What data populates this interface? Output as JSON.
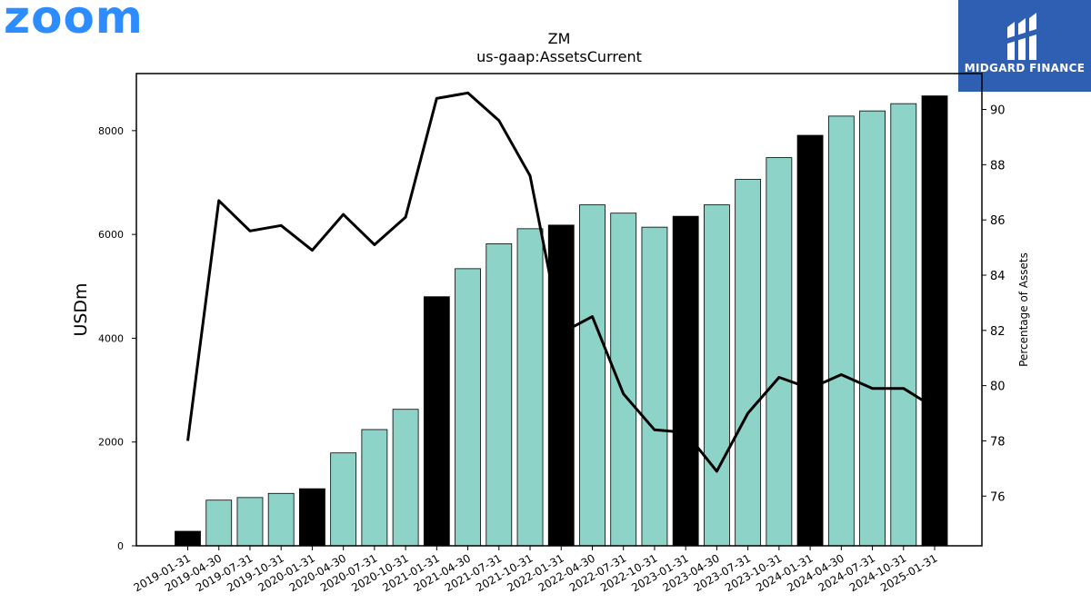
{
  "branding": {
    "left_logo_text": "zoom",
    "left_logo_color": "#2d8cff",
    "right_logo_text": "MIDGARD FINANCE",
    "right_logo_bg": "#2f5fb3"
  },
  "chart_data": {
    "type": "bar",
    "title": "ZM",
    "subtitle": "us-gaap:AssetsCurrent",
    "ylabel": "USDm",
    "y2label": "Percentage of Assets",
    "ylim": [
      0,
      9100
    ],
    "y2lim": [
      74.2,
      91.3
    ],
    "yticks": [
      0,
      2000,
      4000,
      6000,
      8000
    ],
    "y2ticks": [
      76,
      78,
      80,
      82,
      84,
      86,
      88,
      90
    ],
    "categories": [
      "2019-01-31",
      "2019-04-30",
      "2019-07-31",
      "2019-10-31",
      "2020-01-31",
      "2020-04-30",
      "2020-07-31",
      "2020-10-31",
      "2021-01-31",
      "2021-04-30",
      "2021-07-31",
      "2021-10-31",
      "2022-01-31",
      "2022-04-30",
      "2022-07-31",
      "2022-10-31",
      "2023-01-31",
      "2023-04-30",
      "2023-07-31",
      "2023-10-31",
      "2024-01-31",
      "2024-04-30",
      "2024-07-31",
      "2024-10-31",
      "2025-01-31"
    ],
    "series": [
      {
        "kind": "bar",
        "values": [
          280,
          880,
          930,
          1010,
          1100,
          1790,
          2240,
          2630,
          4800,
          5340,
          5820,
          6110,
          6180,
          6570,
          6410,
          6140,
          6350,
          6570,
          7060,
          7480,
          7910,
          8280,
          8380,
          8520,
          8670
        ],
        "highlight_color": "#000000",
        "base_color": "#8dd3c7"
      },
      {
        "kind": "line",
        "axis": "right",
        "values": [
          78.0,
          86.7,
          85.6,
          85.8,
          84.9,
          86.2,
          85.1,
          86.1,
          90.4,
          90.6,
          89.6,
          87.6,
          81.9,
          82.5,
          79.7,
          78.4,
          78.3,
          76.9,
          79.0,
          80.3,
          79.9,
          80.4,
          79.9,
          79.9,
          79.2
        ],
        "color": "#000000"
      }
    ],
    "highlighted_categories": [
      "2019-01-31",
      "2020-01-31",
      "2021-01-31",
      "2022-01-31",
      "2023-01-31",
      "2024-01-31",
      "2025-01-31"
    ],
    "grid": false,
    "legend": "none"
  }
}
